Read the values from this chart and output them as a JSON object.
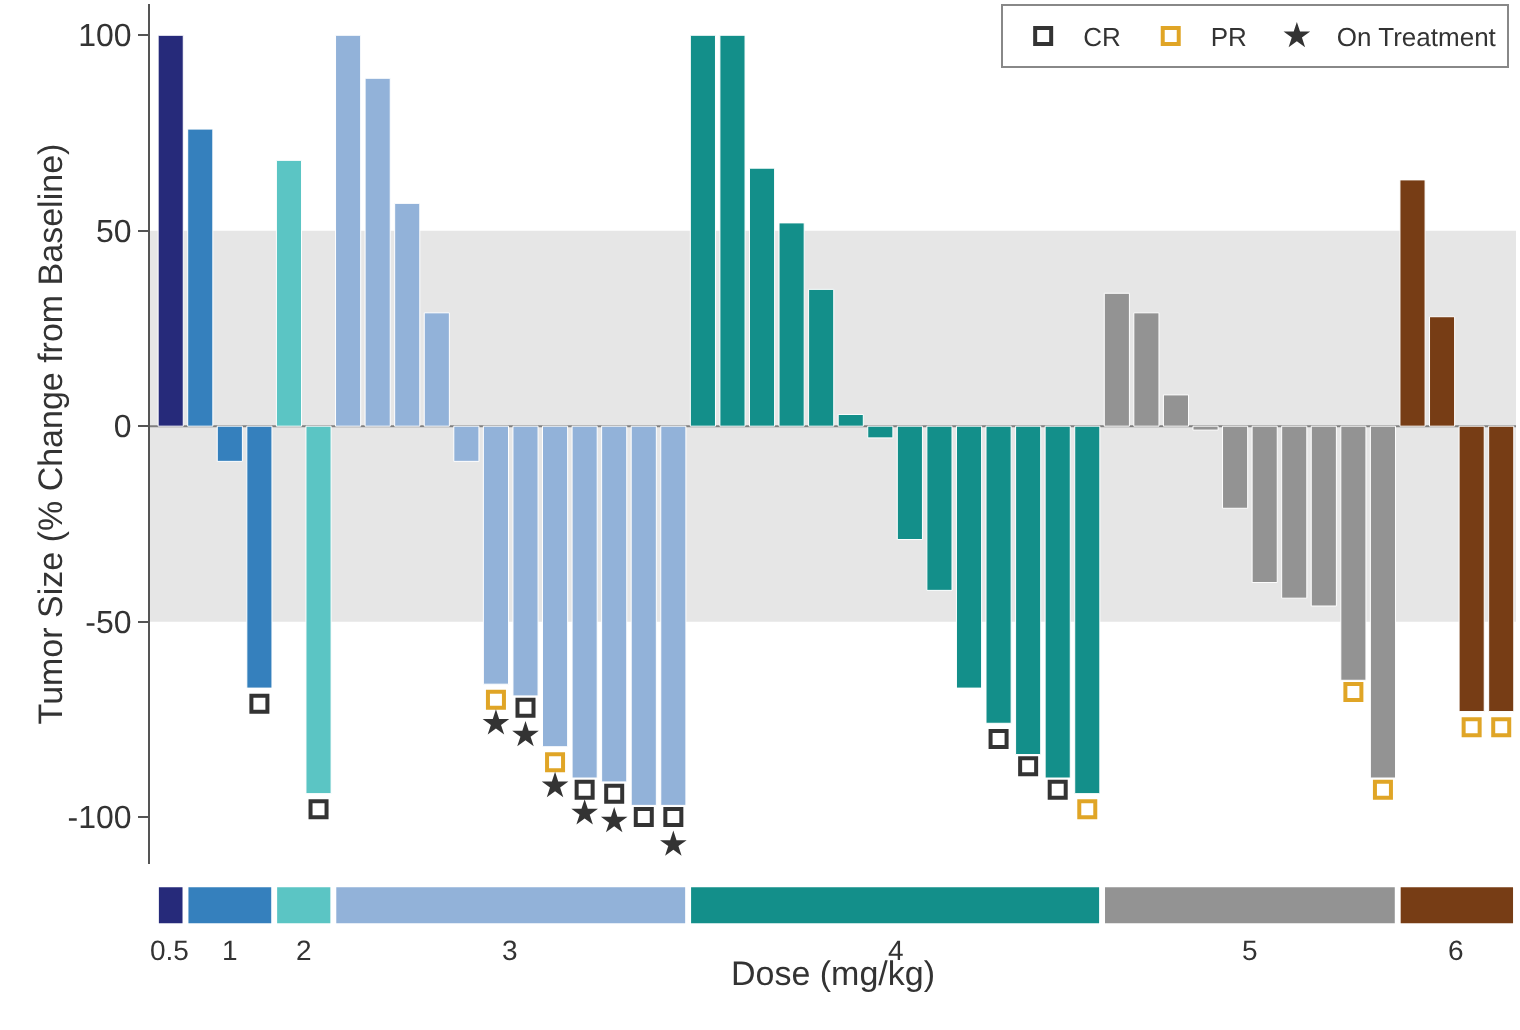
{
  "chart_data": {
    "type": "bar",
    "xlabel": "Dose (mg/kg)",
    "ylabel": "Tumor Size (% Change from Baseline)",
    "categories": [
      null,
      null,
      null,
      null,
      null,
      null,
      null,
      null,
      null,
      null,
      null,
      null,
      null,
      null,
      null,
      null,
      null,
      null,
      null,
      null,
      null,
      null,
      null,
      null,
      null,
      null,
      null,
      null,
      null,
      null,
      null,
      null,
      null,
      null,
      null,
      null,
      null,
      null,
      null,
      null,
      null,
      null,
      null,
      null,
      null,
      null
    ],
    "series": [
      {
        "color": "#262a7a",
        "values": [
          100,
          null,
          null,
          null,
          null,
          null,
          null,
          null,
          null,
          null,
          null,
          null,
          null,
          null,
          null,
          null,
          null,
          null,
          null,
          null,
          null,
          null,
          null,
          null,
          null,
          null,
          null,
          null,
          null,
          null,
          null,
          null,
          null,
          null,
          null,
          null,
          null,
          null,
          null,
          null,
          null,
          null,
          null,
          null,
          null,
          null
        ]
      },
      {
        "color": "#3580bd",
        "values": [
          null,
          76,
          -9,
          -67,
          null,
          null,
          null,
          null,
          null,
          null,
          null,
          null,
          null,
          null,
          null,
          null,
          null,
          null,
          null,
          null,
          null,
          null,
          null,
          null,
          null,
          null,
          null,
          null,
          null,
          null,
          null,
          null,
          null,
          null,
          null,
          null,
          null,
          null,
          null,
          null,
          null,
          null,
          null,
          null,
          null,
          null
        ]
      },
      {
        "color": "#5bc5c4",
        "values": [
          null,
          null,
          null,
          null,
          68,
          -94,
          null,
          null,
          null,
          null,
          null,
          null,
          null,
          null,
          null,
          null,
          null,
          null,
          null,
          null,
          null,
          null,
          null,
          null,
          null,
          null,
          null,
          null,
          null,
          null,
          null,
          null,
          null,
          null,
          null,
          null,
          null,
          null,
          null,
          null,
          null,
          null,
          null,
          null,
          null,
          null
        ]
      },
      {
        "color": "#92b2d9",
        "values": [
          null,
          null,
          null,
          null,
          null,
          null,
          100,
          89,
          57,
          29,
          -9,
          -66,
          -69,
          -82,
          -90,
          -91,
          -97,
          -97,
          null,
          null,
          null,
          null,
          null,
          null,
          null,
          null,
          null,
          null,
          null,
          null,
          null,
          null,
          null,
          null,
          null,
          null,
          null,
          null,
          null,
          null,
          null,
          null,
          null,
          null,
          null,
          null
        ]
      },
      {
        "color": "#138f8a",
        "values": [
          null,
          null,
          null,
          null,
          null,
          null,
          null,
          null,
          null,
          null,
          null,
          null,
          null,
          null,
          null,
          null,
          null,
          null,
          100,
          100,
          66,
          52,
          35,
          3,
          -3,
          -29,
          -42,
          -67,
          -76,
          -84,
          -90,
          -94,
          null,
          null,
          null,
          null,
          null,
          null,
          null,
          null,
          null,
          null,
          null,
          null,
          null,
          null
        ]
      },
      {
        "color": "#939393",
        "values": [
          null,
          null,
          null,
          null,
          null,
          null,
          null,
          null,
          null,
          null,
          null,
          null,
          null,
          null,
          null,
          null,
          null,
          null,
          null,
          null,
          null,
          null,
          null,
          null,
          null,
          null,
          null,
          null,
          null,
          null,
          null,
          null,
          34,
          29,
          8,
          -1,
          -21,
          -40,
          -44,
          -46,
          -65,
          -90,
          null,
          null,
          null,
          null
        ]
      },
      {
        "color": "#773d15",
        "values": [
          null,
          null,
          null,
          null,
          null,
          null,
          null,
          null,
          null,
          null,
          null,
          null,
          null,
          null,
          null,
          null,
          null,
          null,
          null,
          null,
          null,
          null,
          null,
          null,
          null,
          null,
          null,
          null,
          null,
          null,
          null,
          null,
          null,
          null,
          null,
          null,
          null,
          null,
          null,
          null,
          null,
          null,
          63,
          28,
          -73,
          -73
        ]
      },
      {
        "name": "CR",
        "type": "scatter",
        "marker": "square",
        "color": "#333333",
        "values": [
          null,
          null,
          null,
          -71,
          null,
          -98,
          null,
          null,
          null,
          null,
          null,
          null,
          -72,
          null,
          -93,
          -94,
          -100,
          -100,
          null,
          null,
          null,
          null,
          null,
          null,
          null,
          null,
          null,
          null,
          -80,
          -87,
          -93,
          null,
          null,
          null,
          null,
          null,
          null,
          null,
          null,
          null,
          null,
          null,
          null,
          null,
          null,
          null
        ]
      },
      {
        "name": "PR",
        "type": "scatter",
        "marker": "square",
        "color": "#e0a526",
        "values": [
          null,
          null,
          null,
          null,
          null,
          null,
          null,
          null,
          null,
          null,
          null,
          -70,
          null,
          -86,
          null,
          null,
          null,
          null,
          null,
          null,
          null,
          null,
          null,
          null,
          null,
          null,
          null,
          null,
          null,
          null,
          null,
          -98,
          null,
          null,
          null,
          null,
          null,
          null,
          null,
          null,
          -68,
          -93,
          null,
          null,
          -77,
          -77
        ]
      },
      {
        "name": "On Treatment",
        "type": "scatter",
        "marker": "star",
        "color": "#333333",
        "values": [
          null,
          null,
          null,
          null,
          null,
          null,
          null,
          null,
          null,
          null,
          null,
          -76,
          -79,
          -92,
          -99,
          -101,
          null,
          -107,
          null,
          null,
          null,
          null,
          null,
          null,
          null,
          null,
          null,
          null,
          null,
          null,
          null,
          null,
          null,
          null,
          null,
          null,
          null,
          null,
          null,
          null,
          null,
          null,
          null,
          null,
          null,
          null
        ]
      }
    ],
    "ylim": [
      -112,
      108
    ],
    "yticks": [
      100,
      50,
      0,
      -50,
      -100
    ],
    "bands": [
      {
        "axis": "y",
        "from": -50,
        "to": 50,
        "color": "#e6e6e6"
      }
    ],
    "ref_lines": [
      {
        "axis": "y",
        "value": 0,
        "color": "#7f7f7f"
      }
    ],
    "grid": false,
    "legend": "top right",
    "annotations": [
      "0.5",
      "1",
      "2",
      "3",
      "4",
      "5",
      "6"
    ]
  }
}
